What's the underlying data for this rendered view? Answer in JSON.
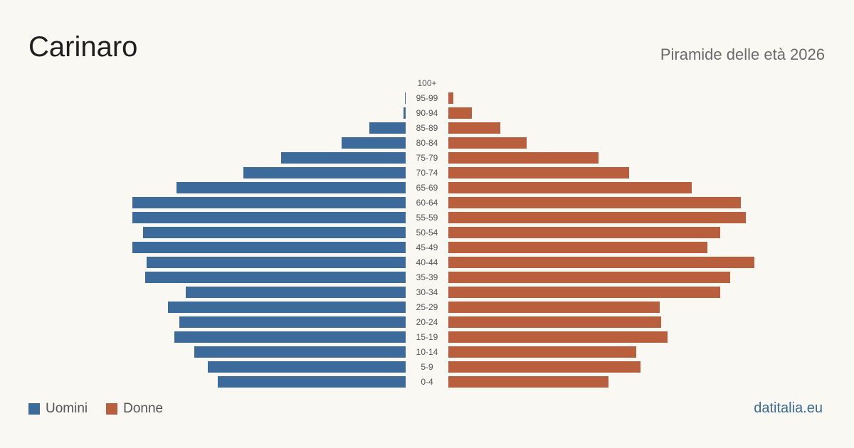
{
  "header": {
    "title": "Carinaro",
    "subtitle": "Piramide delle età 2026"
  },
  "brand": "datitalia.eu",
  "colors": {
    "men": "#3b6a9b",
    "women": "#b95f3e",
    "background": "#faf8f3"
  },
  "chart_data": {
    "type": "bar",
    "orientation": "horizontal-pyramid",
    "categories": [
      "100+",
      "95-99",
      "90-94",
      "85-89",
      "80-84",
      "75-79",
      "70-74",
      "65-69",
      "60-64",
      "55-59",
      "50-54",
      "45-49",
      "40-44",
      "35-39",
      "30-34",
      "25-29",
      "20-24",
      "15-19",
      "10-14",
      "5-9",
      "0-4"
    ],
    "series": [
      {
        "name": "Uomini",
        "values": [
          0,
          1,
          3,
          51,
          90,
          175,
          228,
          322,
          384,
          384,
          369,
          384,
          364,
          366,
          309,
          334,
          318,
          325,
          297,
          278,
          264
        ]
      },
      {
        "name": "Donne",
        "values": [
          0,
          7,
          33,
          73,
          110,
          211,
          254,
          342,
          411,
          418,
          382,
          364,
          430,
          396,
          382,
          297,
          299,
          308,
          264,
          270,
          225
        ]
      }
    ],
    "legend": [
      "Uomini",
      "Donne"
    ],
    "legend_position": "bottom-left"
  }
}
